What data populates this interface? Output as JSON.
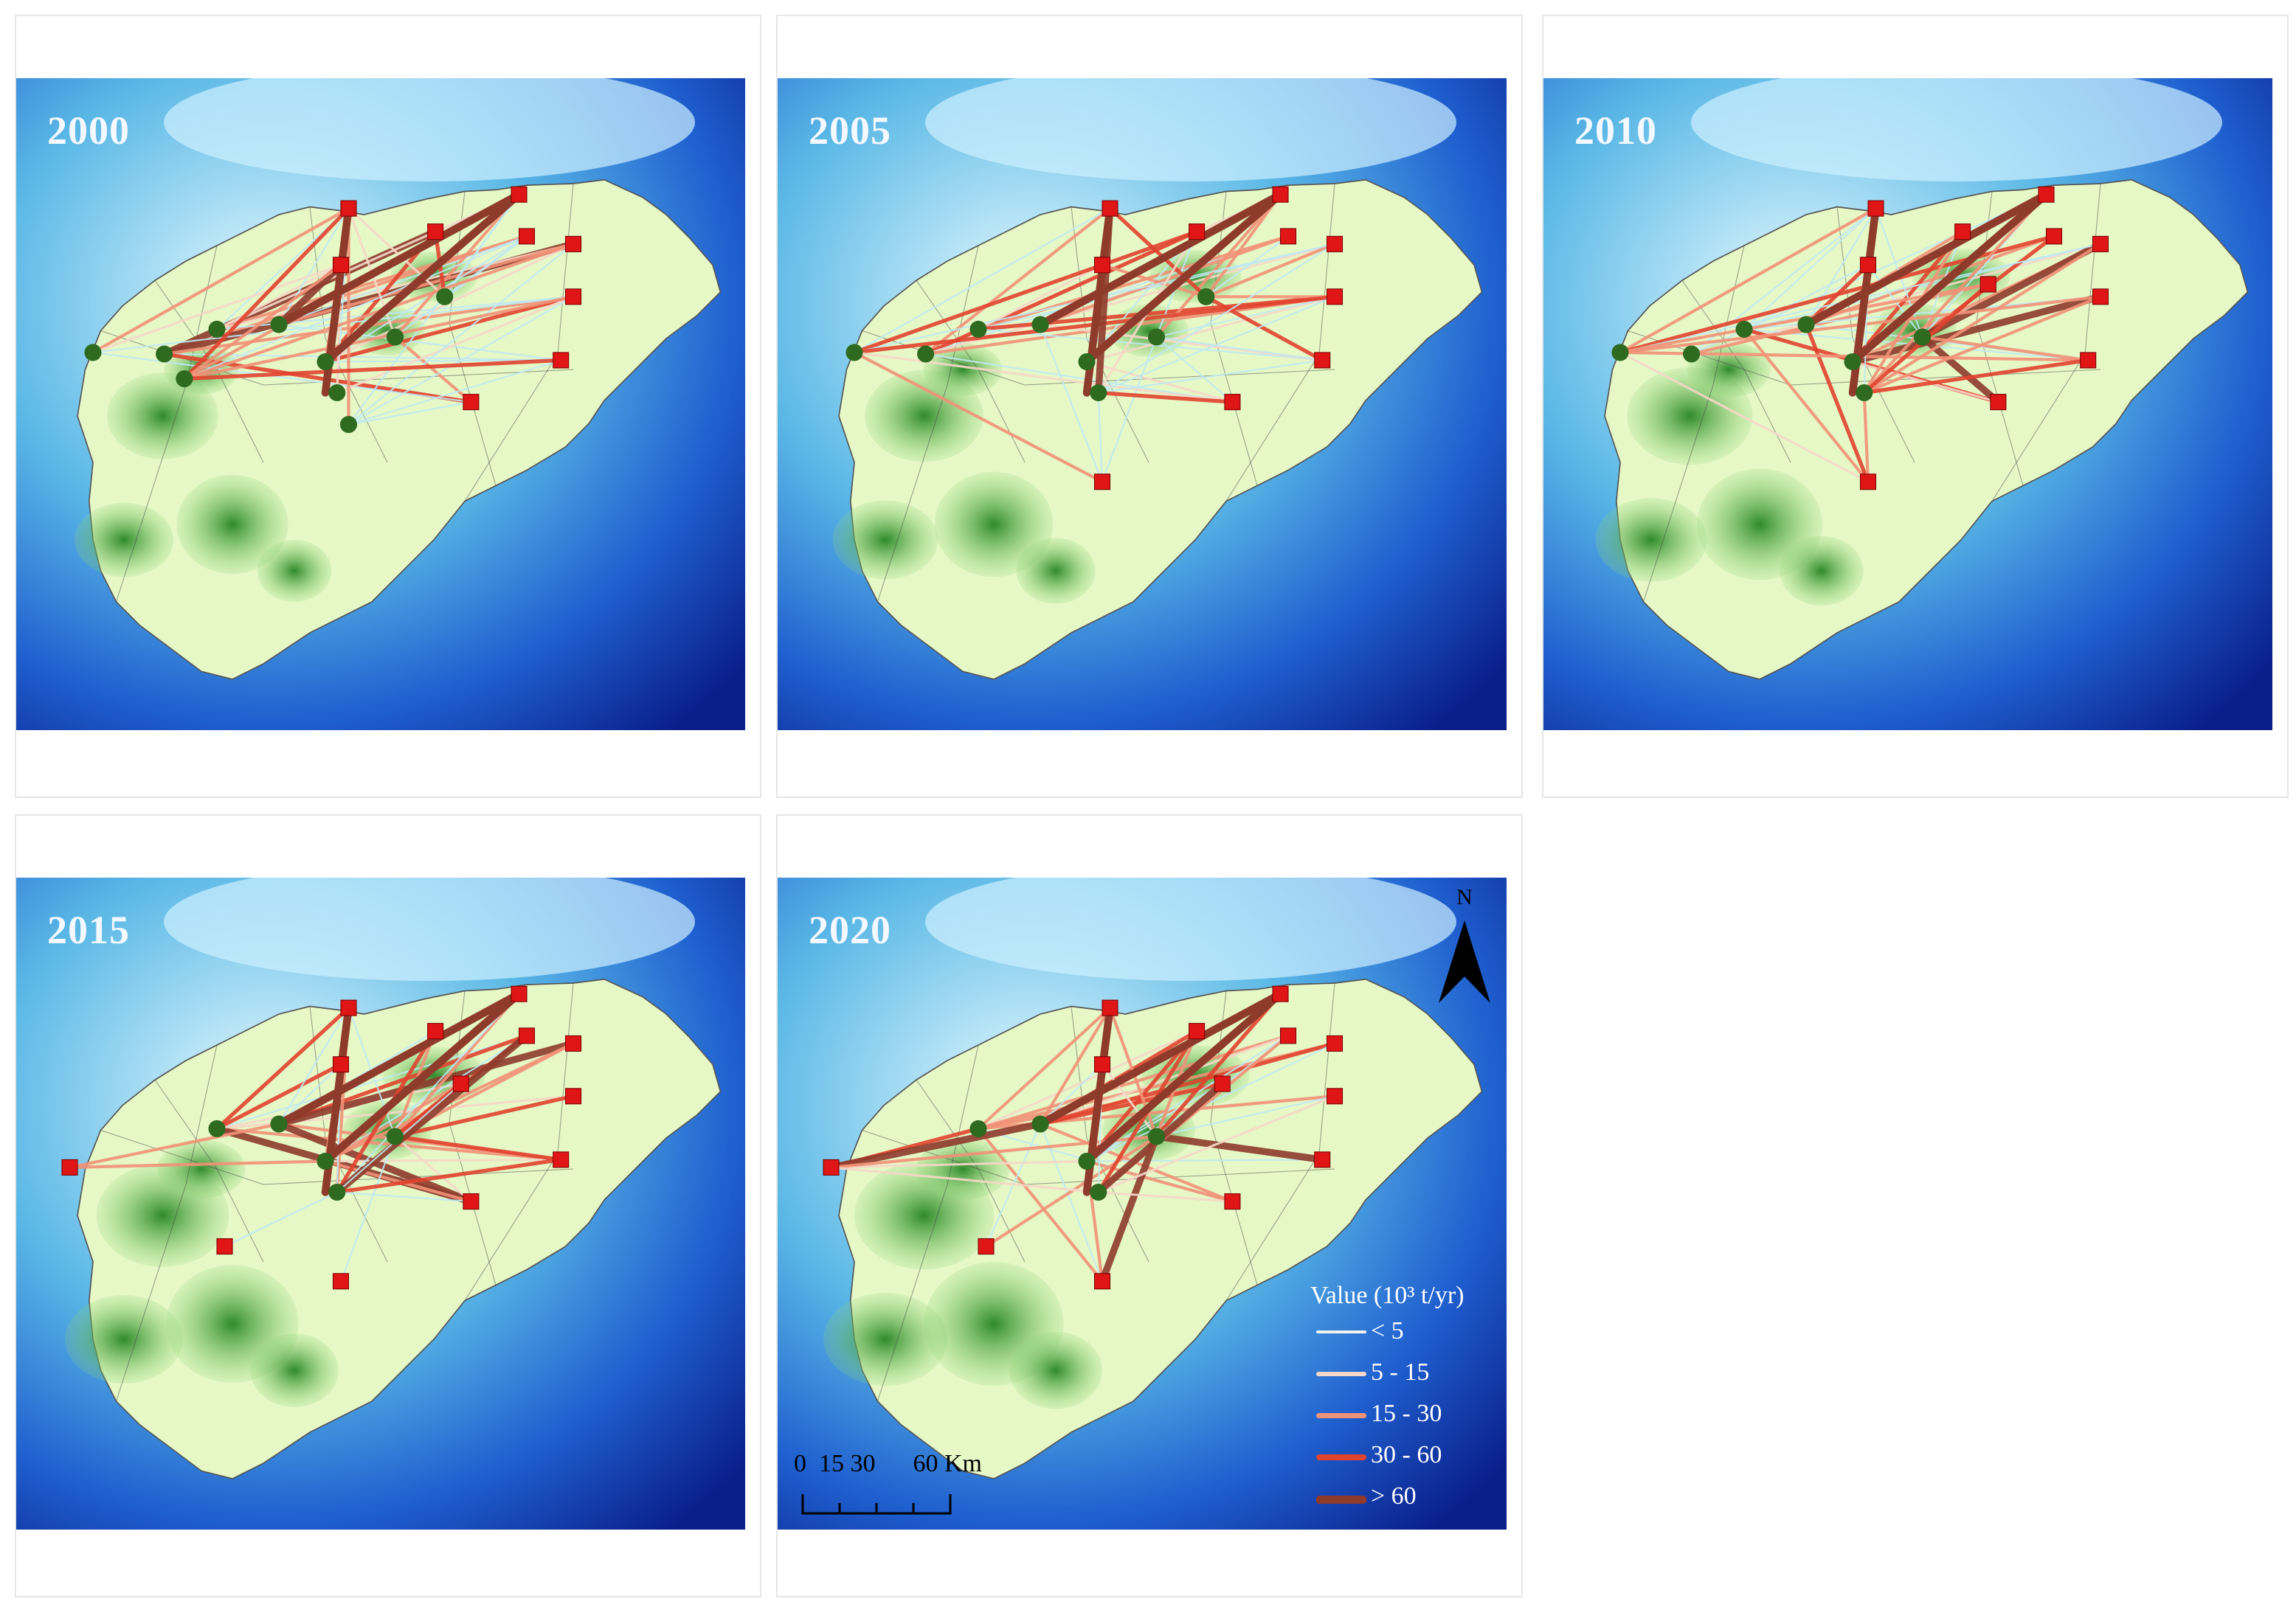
{
  "panels": [
    {
      "year": "2000"
    },
    {
      "year": "2005"
    },
    {
      "year": "2010"
    },
    {
      "year": "2015"
    },
    {
      "year": "2020"
    }
  ],
  "north_arrow": {
    "label": "N"
  },
  "legend": {
    "title": "Value (10³ t/yr)",
    "items": [
      {
        "label": "< 5",
        "color": "#f2f2ee"
      },
      {
        "label": "5 - 15",
        "color": "#f6d8c8"
      },
      {
        "label": "15 - 30",
        "color": "#f29278"
      },
      {
        "label": "30 - 60",
        "color": "#e2432f"
      },
      {
        "label": "> 60",
        "color": "#8e3b2c"
      }
    ]
  },
  "scale_bar": {
    "labels": "0  15 30      60 Km"
  },
  "colors": {
    "sea_light": "#bfe9f3",
    "sea_dark": "#0a1f8a",
    "land_light": "#e6f8c6",
    "forest_dark": "#2f8a2a",
    "source_node": "#2e6a1f",
    "sink_node": "#e01616"
  }
}
